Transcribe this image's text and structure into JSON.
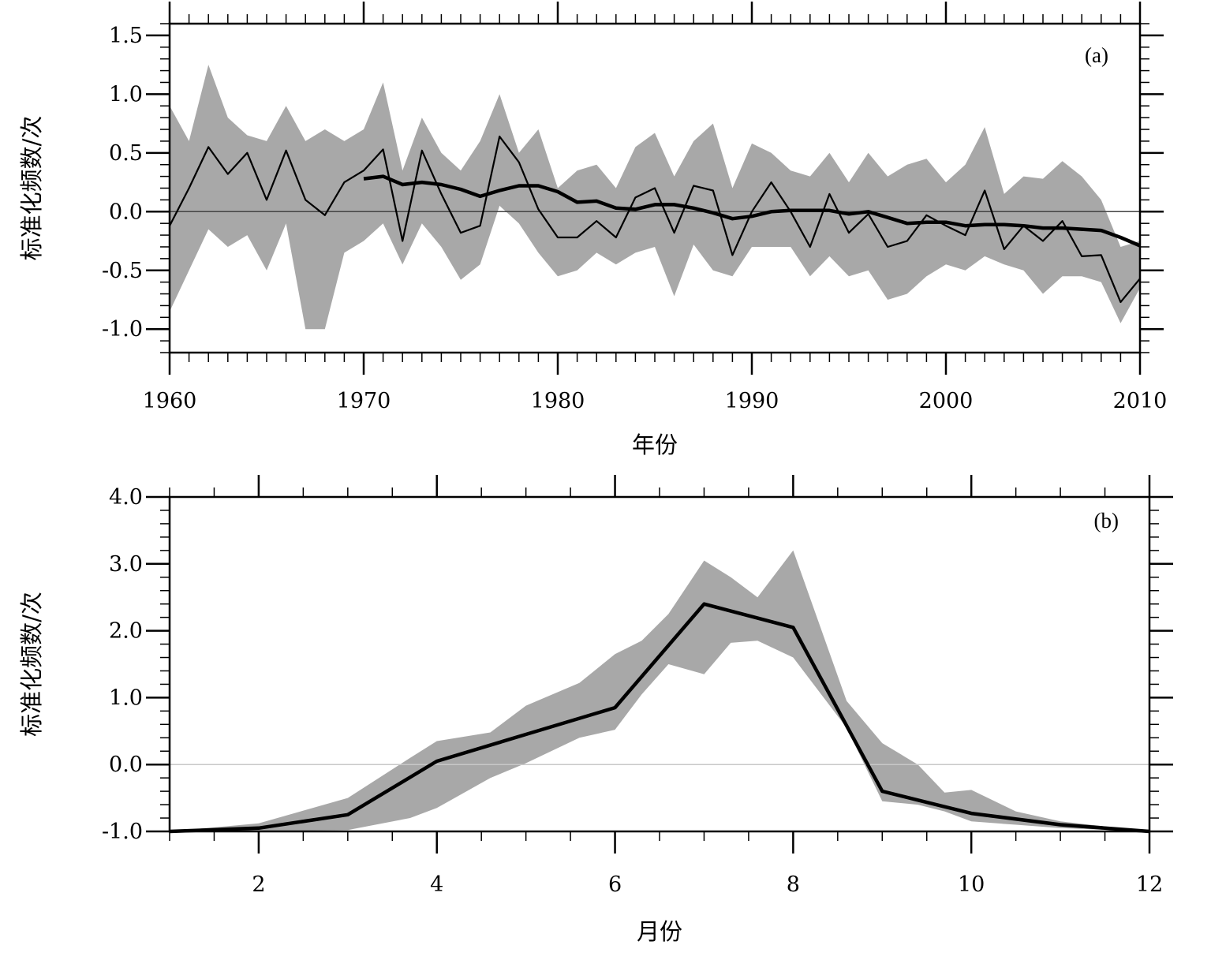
{
  "chart_data": [
    {
      "type": "line",
      "panel_label": "(a)",
      "xlabel": "年份",
      "ylabel": "标准化频数/次",
      "xlim": [
        1960,
        2010
      ],
      "ylim": [
        -1.2,
        1.6
      ],
      "xticks": [
        1960,
        1970,
        1980,
        1990,
        2000,
        2010
      ],
      "xtick_labels": [
        "1960",
        "1970",
        "1980",
        "1990",
        "2000",
        "2010"
      ],
      "yticks": [
        -1.0,
        -0.5,
        0.0,
        0.5,
        1.0,
        1.5
      ],
      "ytick_labels": [
        "-1.0",
        "-0.5",
        "0.0",
        "0.5",
        "1.0",
        "1.5"
      ],
      "zero_line": true,
      "grid": false,
      "band": {
        "x": [
          1960,
          1961,
          1962,
          1963,
          1964,
          1965,
          1966,
          1967,
          1968,
          1969,
          1970,
          1971,
          1972,
          1973,
          1974,
          1975,
          1976,
          1977,
          1978,
          1979,
          1980,
          1981,
          1982,
          1983,
          1984,
          1985,
          1986,
          1987,
          1988,
          1989,
          1990,
          1991,
          1992,
          1993,
          1994,
          1995,
          1996,
          1997,
          1998,
          1999,
          2000,
          2001,
          2002,
          2003,
          2004,
          2005,
          2006,
          2007,
          2008,
          2009,
          2010
        ],
        "upper": [
          0.9,
          0.6,
          1.25,
          0.8,
          0.65,
          0.6,
          0.9,
          0.6,
          0.7,
          0.6,
          0.7,
          1.1,
          0.35,
          0.8,
          0.5,
          0.35,
          0.6,
          1.0,
          0.5,
          0.7,
          0.2,
          0.35,
          0.4,
          0.2,
          0.55,
          0.67,
          0.3,
          0.6,
          0.75,
          0.2,
          0.58,
          0.5,
          0.35,
          0.3,
          0.5,
          0.25,
          0.5,
          0.3,
          0.4,
          0.45,
          0.25,
          0.4,
          0.72,
          0.15,
          0.3,
          0.28,
          0.43,
          0.3,
          0.1,
          -0.3,
          -0.25
        ],
        "lower": [
          -0.85,
          -0.5,
          -0.15,
          -0.3,
          -0.2,
          -0.5,
          -0.1,
          -1.0,
          -1.0,
          -0.35,
          -0.25,
          -0.1,
          -0.45,
          -0.1,
          -0.3,
          -0.58,
          -0.45,
          0.05,
          -0.1,
          -0.35,
          -0.55,
          -0.5,
          -0.35,
          -0.45,
          -0.35,
          -0.3,
          -0.72,
          -0.28,
          -0.5,
          -0.55,
          -0.3,
          -0.3,
          -0.3,
          -0.55,
          -0.38,
          -0.55,
          -0.5,
          -0.75,
          -0.7,
          -0.55,
          -0.45,
          -0.5,
          -0.38,
          -0.45,
          -0.5,
          -0.7,
          -0.55,
          -0.55,
          -0.6,
          -0.95,
          -0.65
        ]
      },
      "series": [
        {
          "x": [
            1960,
            1961,
            1962,
            1963,
            1964,
            1965,
            1966,
            1967,
            1968,
            1969,
            1970,
            1971,
            1972,
            1973,
            1974,
            1975,
            1976,
            1977,
            1978,
            1979,
            1980,
            1981,
            1982,
            1983,
            1984,
            1985,
            1986,
            1987,
            1988,
            1989,
            1990,
            1991,
            1992,
            1993,
            1994,
            1995,
            1996,
            1997,
            1998,
            1999,
            2000,
            2001,
            2002,
            2003,
            2004,
            2005,
            2006,
            2007,
            2008,
            2009,
            2010
          ],
          "values": [
            -0.12,
            0.2,
            0.55,
            0.32,
            0.5,
            0.1,
            0.52,
            0.1,
            -0.03,
            0.25,
            0.35,
            0.53,
            -0.25,
            0.52,
            0.15,
            -0.18,
            -0.12,
            0.64,
            0.42,
            0.02,
            -0.22,
            -0.22,
            -0.08,
            -0.22,
            0.12,
            0.2,
            -0.18,
            0.22,
            0.18,
            -0.37,
            0.0,
            0.25,
            0.0,
            -0.3,
            0.15,
            -0.18,
            -0.02,
            -0.3,
            -0.25,
            -0.03,
            -0.12,
            -0.2,
            0.18,
            -0.32,
            -0.12,
            -0.25,
            -0.08,
            -0.38,
            -0.37,
            -0.77,
            -0.57
          ]
        },
        {
          "x": [
            1970,
            1971,
            1972,
            1973,
            1974,
            1975,
            1976,
            1977,
            1978,
            1979,
            1980,
            1981,
            1982,
            1983,
            1984,
            1985,
            1986,
            1987,
            1988,
            1989,
            1990,
            1991,
            1992,
            1993,
            1994,
            1995,
            1996,
            1997,
            1998,
            1999,
            2000,
            2001,
            2002,
            2003,
            2004,
            2005,
            2006,
            2007,
            2008,
            2009,
            2010
          ],
          "values": [
            0.28,
            0.3,
            0.23,
            0.25,
            0.23,
            0.19,
            0.13,
            0.18,
            0.22,
            0.22,
            0.17,
            0.08,
            0.09,
            0.03,
            0.02,
            0.06,
            0.06,
            0.03,
            -0.01,
            -0.06,
            -0.04,
            0.0,
            0.01,
            0.01,
            0.01,
            -0.02,
            0.0,
            -0.05,
            -0.1,
            -0.09,
            -0.09,
            -0.12,
            -0.11,
            -0.11,
            -0.12,
            -0.14,
            -0.14,
            -0.15,
            -0.16,
            -0.22,
            -0.29
          ]
        }
      ]
    },
    {
      "type": "line",
      "panel_label": "(b)",
      "xlabel": "月份",
      "ylabel": "标准化频数/次",
      "xlim": [
        1,
        12
      ],
      "ylim": [
        -1.0,
        4.0
      ],
      "xticks": [
        2,
        4,
        6,
        8,
        10,
        12
      ],
      "xtick_labels": [
        "2",
        "4",
        "6",
        "8",
        "10",
        "12"
      ],
      "yticks": [
        -1.0,
        0.0,
        1.0,
        2.0,
        3.0,
        4.0
      ],
      "ytick_labels": [
        "-1.0",
        "0.0",
        "1.0",
        "2.0",
        "3.0",
        "4.0"
      ],
      "zero_line": true,
      "grid": false,
      "band": {
        "x": [
          1,
          2,
          3,
          3.7,
          4,
          4.6,
          5,
          5.6,
          6,
          6.3,
          6.6,
          7,
          7.3,
          7.6,
          8,
          8.6,
          9,
          9.4,
          9.7,
          10,
          10.5,
          11,
          12
        ],
        "upper": [
          -1.0,
          -0.88,
          -0.5,
          0.1,
          0.35,
          0.48,
          0.88,
          1.22,
          1.65,
          1.85,
          2.25,
          3.05,
          2.8,
          2.5,
          3.2,
          0.95,
          0.32,
          0.0,
          -0.42,
          -0.38,
          -0.7,
          -0.85,
          -1.0
        ],
        "lower": [
          -1.0,
          -1.0,
          -0.98,
          -0.8,
          -0.65,
          -0.2,
          0.02,
          0.4,
          0.52,
          1.05,
          1.5,
          1.35,
          1.82,
          1.85,
          1.6,
          0.55,
          -0.55,
          -0.6,
          -0.7,
          -0.85,
          -0.9,
          -0.95,
          -1.0
        ]
      },
      "series": [
        {
          "x": [
            1,
            2,
            3,
            4,
            5,
            6,
            7,
            8,
            9,
            10,
            11,
            12
          ],
          "values": [
            -1.0,
            -0.95,
            -0.75,
            0.05,
            0.45,
            0.85,
            2.4,
            2.05,
            -0.4,
            -0.73,
            -0.9,
            -1.0
          ]
        }
      ]
    }
  ]
}
